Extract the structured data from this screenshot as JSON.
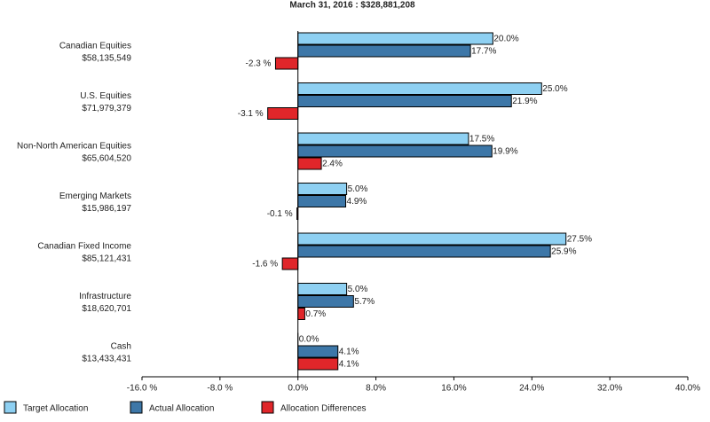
{
  "chart_data": {
    "type": "hbar",
    "title": "March 31, 2016 : $328,881,208",
    "categories": [
      "Canadian Equities",
      "U.S. Equities",
      "Non-North American Equities",
      "Emerging Markets",
      "Canadian Fixed Income",
      "Infrastructure",
      "Cash"
    ],
    "category_amounts": [
      "$58,135,549",
      "$71,979,379",
      "$65,604,520",
      "$15,986,197",
      "$85,121,431",
      "$18,620,701",
      "$13,433,431"
    ],
    "series": [
      {
        "name": "Target Allocation",
        "color": "#8ed0f2",
        "values": [
          20.0,
          25.0,
          17.5,
          5.0,
          27.5,
          5.0,
          0.0
        ],
        "value_labels": [
          "20.0%",
          "25.0%",
          "17.5%",
          "5.0%",
          "27.5%",
          "5.0%",
          "0.0%"
        ]
      },
      {
        "name": "Actual Allocation",
        "color": "#3d77a8",
        "values": [
          17.7,
          21.9,
          19.9,
          4.9,
          25.9,
          5.7,
          4.1
        ],
        "value_labels": [
          "17.7%",
          "21.9%",
          "19.9%",
          "4.9%",
          "25.9%",
          "5.7%",
          "4.1%"
        ]
      },
      {
        "name": "Allocation Differences",
        "color": "#e0262a",
        "values": [
          -2.3,
          -3.1,
          2.4,
          -0.1,
          -1.6,
          0.7,
          4.1
        ],
        "value_labels": [
          "-2.3 %",
          "-3.1 %",
          "2.4%",
          "-0.1 %",
          "-1.6 %",
          "0.7%",
          "4.1%"
        ]
      }
    ],
    "xlim": [
      -16,
      40
    ],
    "xticks": [
      {
        "value": -16,
        "label": "-16.0 %"
      },
      {
        "value": -8,
        "label": "-8.0 %"
      },
      {
        "value": 0,
        "label": "0.0%"
      },
      {
        "value": 8,
        "label": "8.0%"
      },
      {
        "value": 16,
        "label": "16.0%"
      },
      {
        "value": 24,
        "label": "24.0%"
      },
      {
        "value": 32,
        "label": "32.0%"
      },
      {
        "value": 40,
        "label": "40.0%"
      }
    ]
  }
}
